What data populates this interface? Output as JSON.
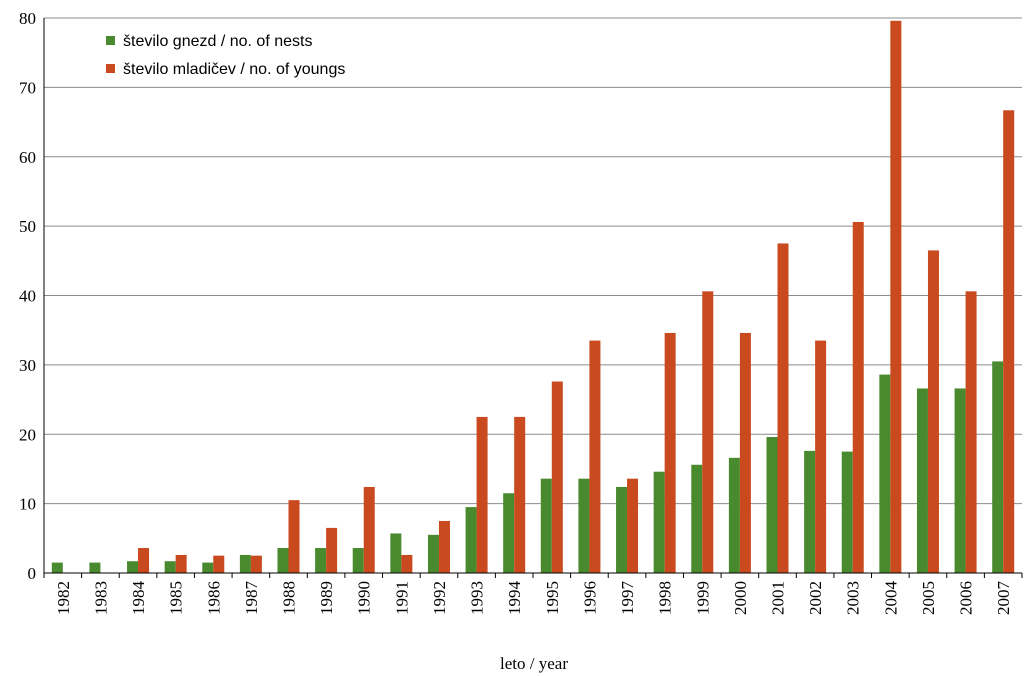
{
  "chart_data": {
    "type": "bar",
    "title": "",
    "xlabel": "leto / year",
    "ylabel": "",
    "ylim": [
      0,
      80
    ],
    "yticks": [
      0,
      10,
      20,
      30,
      40,
      50,
      60,
      70,
      80
    ],
    "grid": true,
    "legend_position": "top-left",
    "categories": [
      "1982",
      "1983",
      "1984",
      "1985",
      "1986",
      "1987",
      "1988",
      "1989",
      "1990",
      "1991",
      "1992",
      "1993",
      "1994",
      "1995",
      "1996",
      "1997",
      "1998",
      "1999",
      "2000",
      "2001",
      "2002",
      "2003",
      "2004",
      "2005",
      "2006",
      "2007"
    ],
    "series": [
      {
        "name": "število gnezd / no. of nests",
        "color": "#4a8a2e",
        "values": [
          1.5,
          1.5,
          1.7,
          1.7,
          1.5,
          2.6,
          3.6,
          3.6,
          3.6,
          5.7,
          5.5,
          9.5,
          11.5,
          13.6,
          13.6,
          12.4,
          14.6,
          15.6,
          16.6,
          19.6,
          17.6,
          17.5,
          28.6,
          26.6,
          26.6,
          30.5
        ]
      },
      {
        "name": "število mladičev / no. of youngs",
        "color": "#c94a1e",
        "values": [
          0,
          0,
          3.6,
          2.6,
          2.5,
          2.5,
          10.5,
          6.5,
          12.4,
          2.6,
          7.5,
          22.5,
          22.5,
          27.6,
          33.5,
          13.6,
          34.6,
          40.6,
          34.6,
          47.5,
          33.5,
          50.6,
          79.6,
          46.5,
          40.6,
          66.7
        ]
      }
    ]
  }
}
